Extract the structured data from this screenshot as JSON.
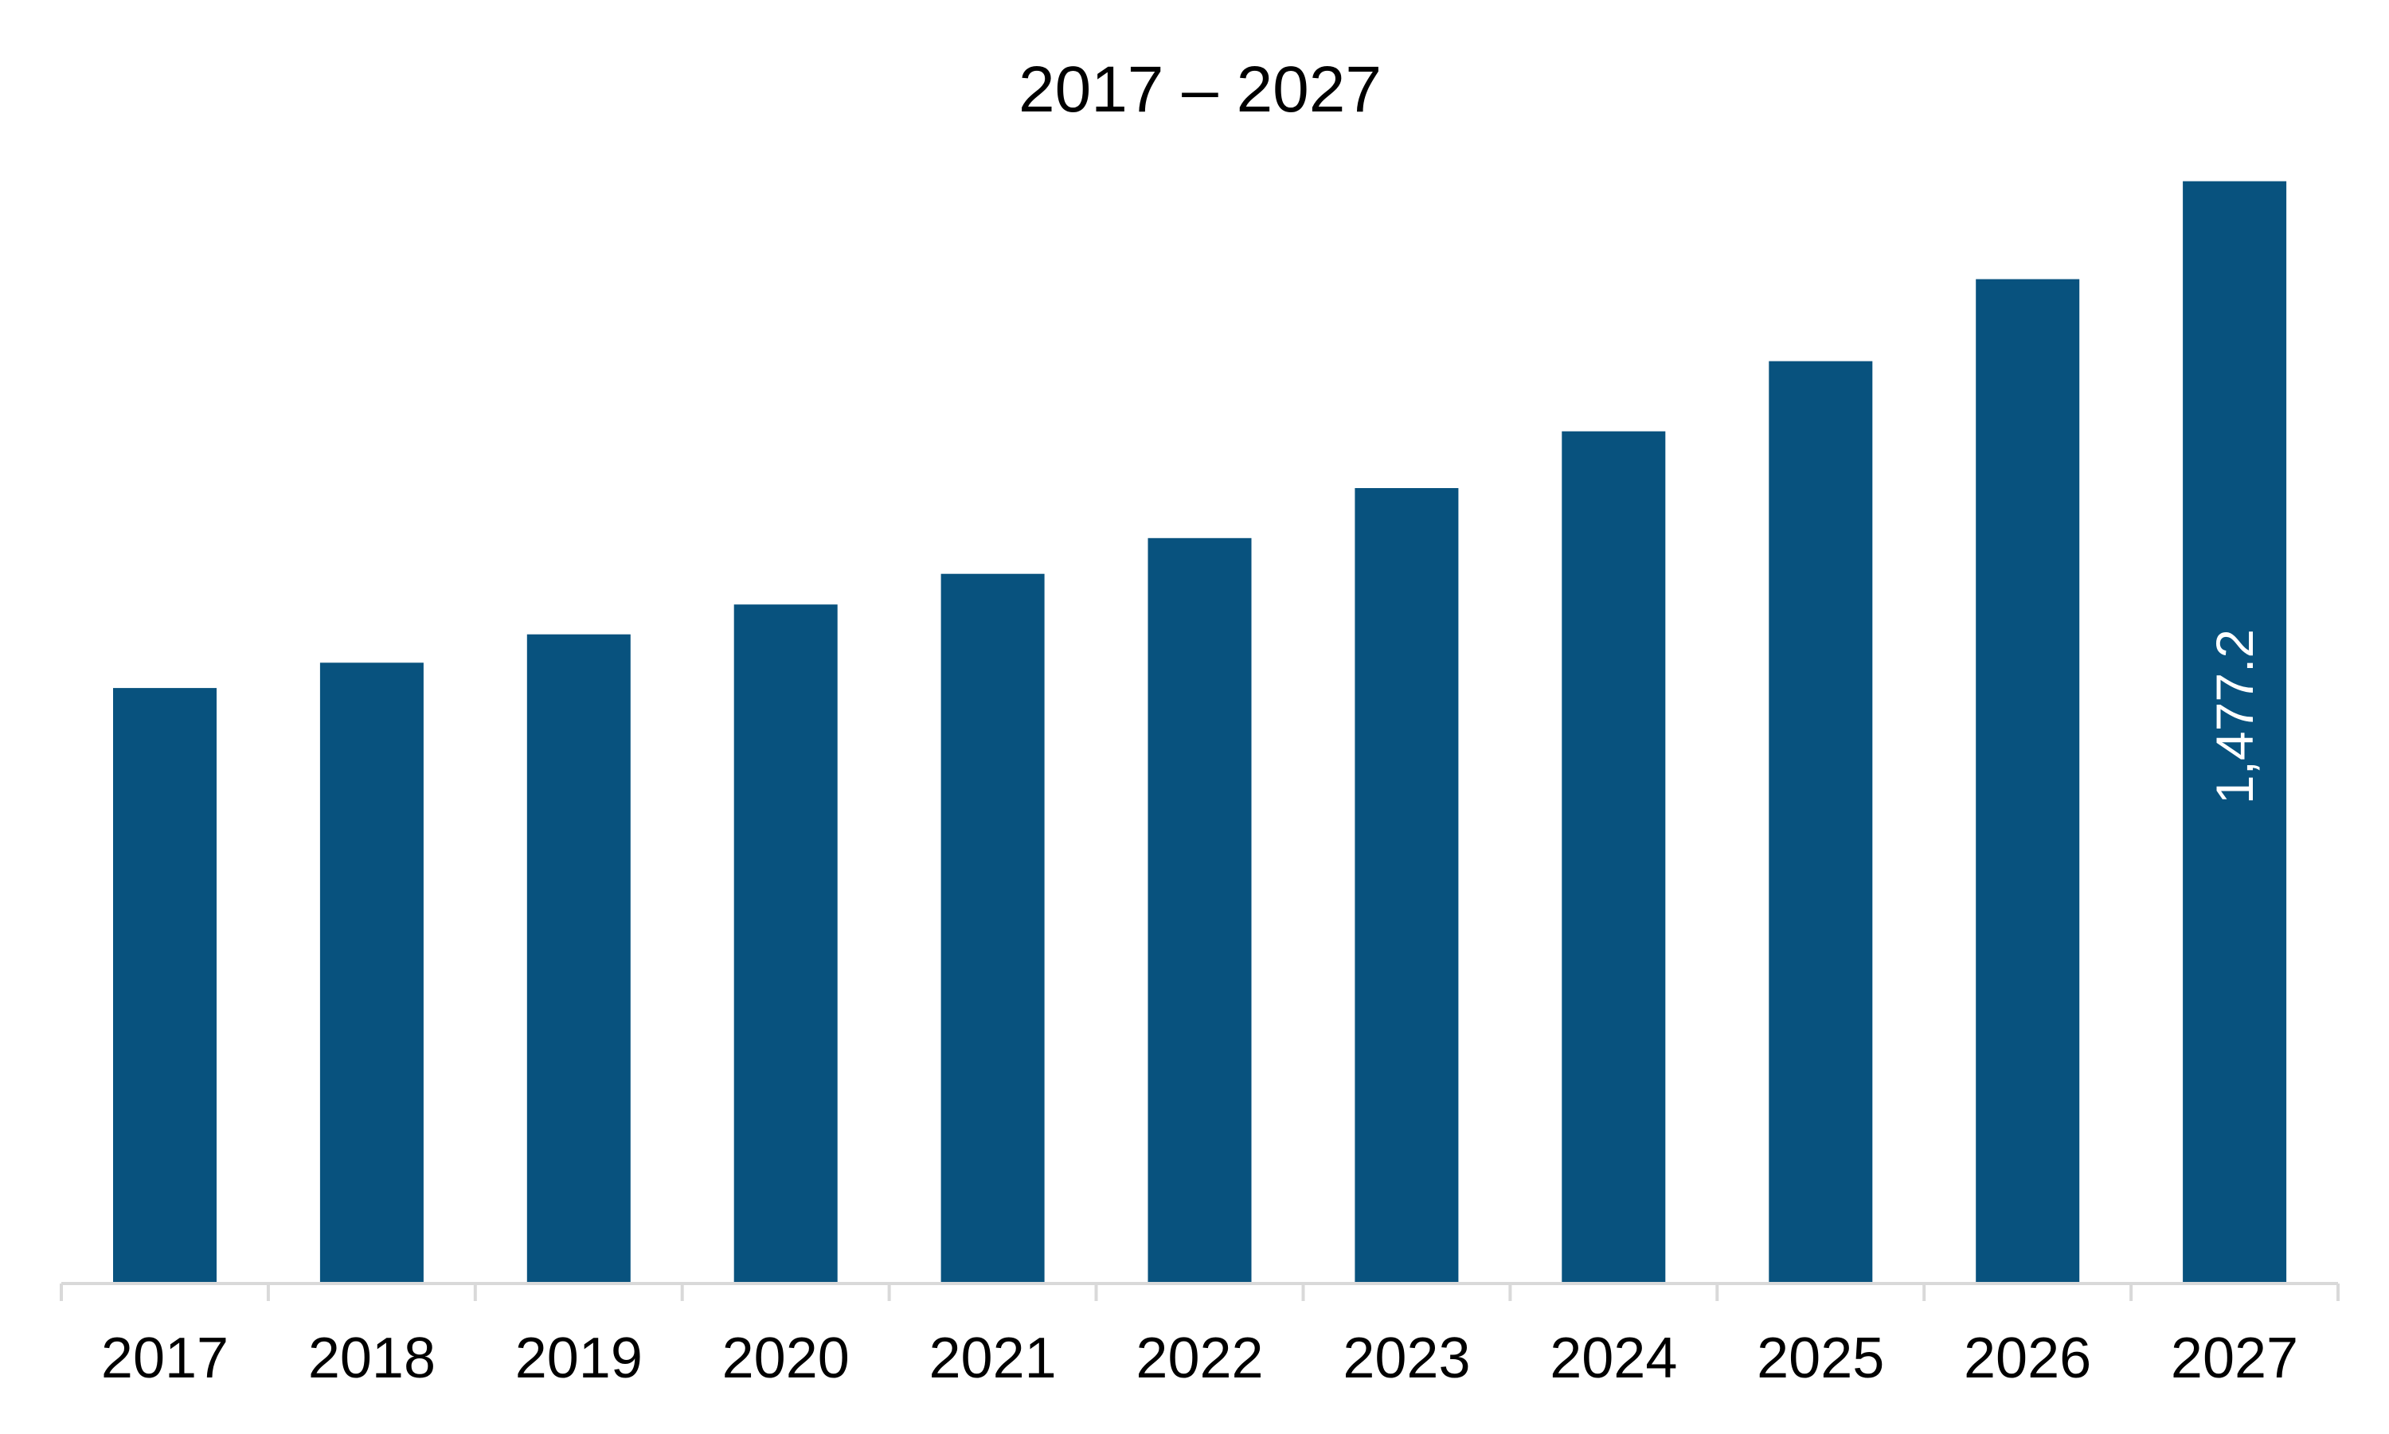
{
  "chart_data": {
    "type": "bar",
    "title": "2017 – 2027",
    "xlabel": "",
    "ylabel": "",
    "categories": [
      "2017",
      "2018",
      "2019",
      "2020",
      "2021",
      "2022",
      "2023",
      "2024",
      "2025",
      "2026",
      "2027"
    ],
    "values": [
      798,
      832,
      870,
      910,
      951,
      999,
      1066,
      1142,
      1236,
      1346,
      1477.2
    ],
    "data_labels": [
      {
        "category": "2027",
        "text": "1,477.2"
      }
    ],
    "ylim": [
      0,
      1560
    ],
    "grid": false,
    "legend": "none",
    "bar_color": "#08527E",
    "axis_color": "#D9D9D9",
    "label_color_inside_bar": "#FFFFFF"
  }
}
